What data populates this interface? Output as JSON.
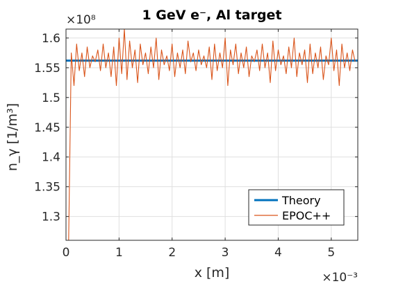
{
  "chart_data": {
    "type": "line",
    "title": "1 GeV e⁻, Al target",
    "xlabel": "x [m]",
    "ylabel": "n_γ [1/m³]",
    "x_multiplier": "×10⁻³",
    "y_multiplier": "×10⁸",
    "xlim": [
      0,
      5.5
    ],
    "ylim": [
      1.26,
      1.615
    ],
    "x_ticks": [
      0,
      1,
      2,
      3,
      4,
      5
    ],
    "x_tick_labels": [
      "0",
      "1",
      "2",
      "3",
      "4",
      "5"
    ],
    "y_ticks": [
      1.3,
      1.35,
      1.4,
      1.45,
      1.5,
      1.55,
      1.6
    ],
    "y_tick_labels": [
      "1.3",
      "1.35",
      "1.4",
      "1.45",
      "1.5",
      "1.55",
      "1.6"
    ],
    "grid": true,
    "legend_position": "bottom-right",
    "series": [
      {
        "name": "Theory",
        "color": "#0072BD",
        "x": [
          0,
          5.5
        ],
        "y": [
          1.562,
          1.562
        ]
      },
      {
        "name": "EPOC++",
        "color": "#D95319",
        "x": [
          0.05,
          0.1,
          0.15,
          0.2,
          0.25,
          0.3,
          0.35,
          0.4,
          0.45,
          0.5,
          0.55,
          0.6,
          0.65,
          0.7,
          0.75,
          0.8,
          0.85,
          0.9,
          0.95,
          1.0,
          1.05,
          1.1,
          1.15,
          1.2,
          1.25,
          1.3,
          1.35,
          1.4,
          1.45,
          1.5,
          1.55,
          1.6,
          1.65,
          1.7,
          1.75,
          1.8,
          1.85,
          1.9,
          1.95,
          2.0,
          2.05,
          2.1,
          2.15,
          2.2,
          2.25,
          2.3,
          2.35,
          2.4,
          2.45,
          2.5,
          2.55,
          2.6,
          2.65,
          2.7,
          2.75,
          2.8,
          2.85,
          2.9,
          2.95,
          3.0,
          3.05,
          3.1,
          3.15,
          3.2,
          3.25,
          3.3,
          3.35,
          3.4,
          3.45,
          3.5,
          3.55,
          3.6,
          3.65,
          3.7,
          3.75,
          3.8,
          3.85,
          3.9,
          3.95,
          4.0,
          4.05,
          4.1,
          4.15,
          4.2,
          4.25,
          4.3,
          4.35,
          4.4,
          4.45,
          4.5,
          4.55,
          4.6,
          4.65,
          4.7,
          4.75,
          4.8,
          4.85,
          4.9,
          4.95,
          5.0,
          5.05,
          5.1,
          5.15,
          5.2,
          5.25,
          5.3,
          5.35,
          5.4,
          5.45
        ],
        "y": [
          1.26,
          1.575,
          1.52,
          1.59,
          1.545,
          1.575,
          1.535,
          1.585,
          1.55,
          1.57,
          1.56,
          1.58,
          1.545,
          1.59,
          1.55,
          1.575,
          1.535,
          1.585,
          1.52,
          1.6,
          1.54,
          1.615,
          1.53,
          1.595,
          1.55,
          1.58,
          1.525,
          1.59,
          1.555,
          1.575,
          1.54,
          1.585,
          1.55,
          1.6,
          1.53,
          1.58,
          1.555,
          1.57,
          1.545,
          1.59,
          1.535,
          1.575,
          1.55,
          1.58,
          1.54,
          1.595,
          1.56,
          1.575,
          1.545,
          1.58,
          1.555,
          1.57,
          1.55,
          1.585,
          1.53,
          1.59,
          1.545,
          1.575,
          1.55,
          1.6,
          1.52,
          1.58,
          1.555,
          1.59,
          1.54,
          1.575,
          1.55,
          1.585,
          1.535,
          1.57,
          1.56,
          1.58,
          1.545,
          1.59,
          1.55,
          1.575,
          1.525,
          1.595,
          1.545,
          1.58,
          1.555,
          1.57,
          1.54,
          1.585,
          1.55,
          1.6,
          1.535,
          1.575,
          1.555,
          1.58,
          1.525,
          1.59,
          1.54,
          1.575,
          1.55,
          1.585,
          1.53,
          1.57,
          1.555,
          1.6,
          1.545,
          1.58,
          1.52,
          1.59,
          1.55,
          1.575,
          1.545,
          1.58,
          1.56
        ]
      }
    ]
  }
}
